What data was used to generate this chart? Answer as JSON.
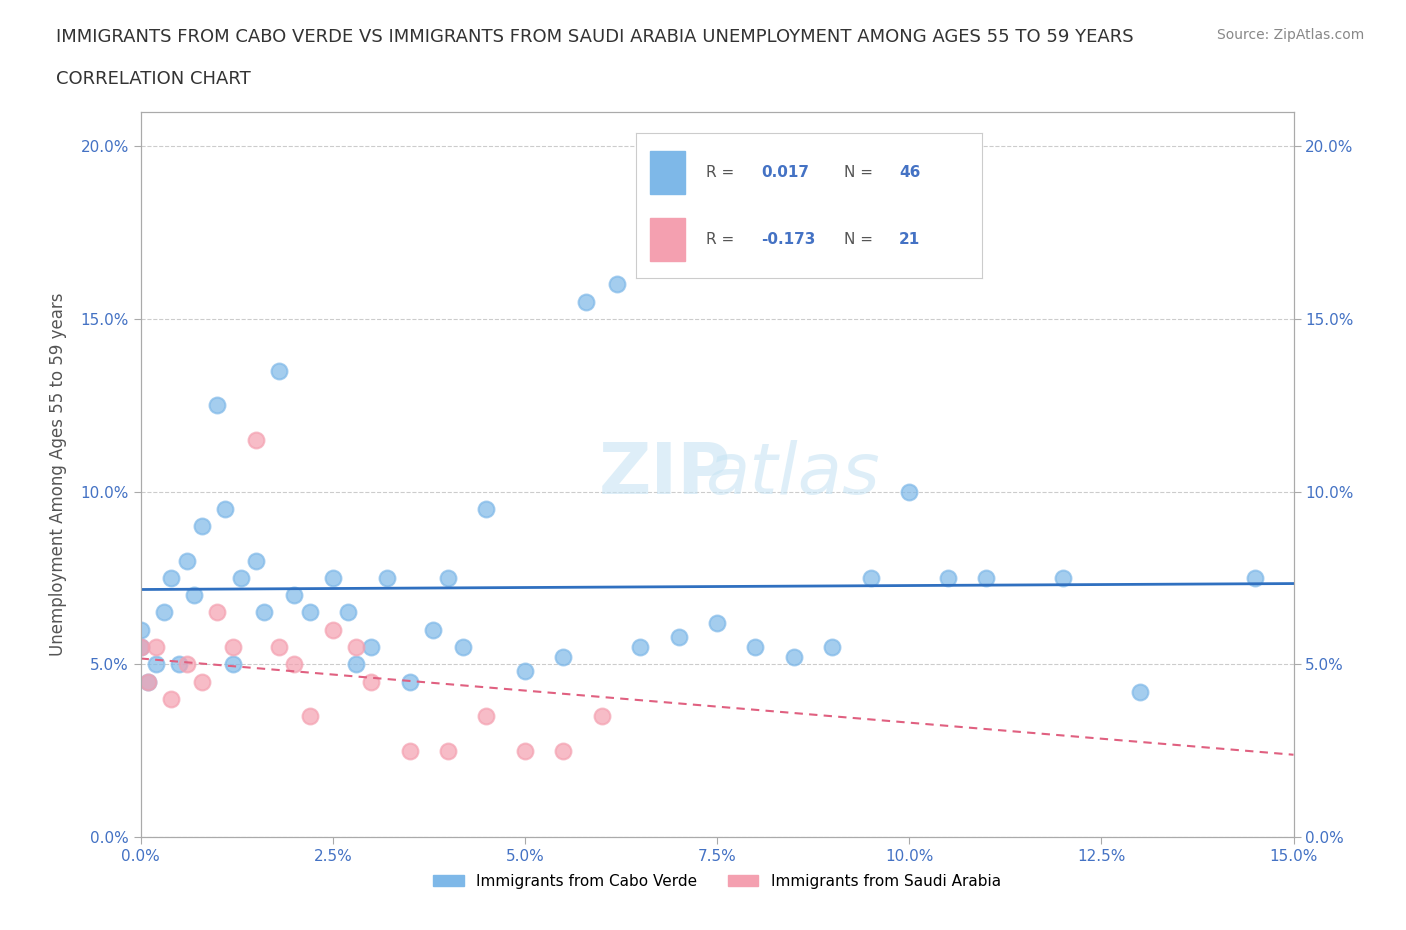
{
  "title_line1": "IMMIGRANTS FROM CABO VERDE VS IMMIGRANTS FROM SAUDI ARABIA UNEMPLOYMENT AMONG AGES 55 TO 59 YEARS",
  "title_line2": "CORRELATION CHART",
  "source": "Source: ZipAtlas.com",
  "xlabel_vals": [
    0.0,
    2.5,
    5.0,
    7.5,
    10.0,
    12.5,
    15.0
  ],
  "ylabel_vals": [
    0.0,
    5.0,
    10.0,
    15.0,
    20.0
  ],
  "xlim": [
    0.0,
    15.0
  ],
  "ylim": [
    0.0,
    21.0
  ],
  "watermark_zip": "ZIP",
  "watermark_atlas": "atlas",
  "cabo_verde_R": 0.017,
  "cabo_verde_N": 46,
  "saudi_arabia_R": -0.173,
  "saudi_arabia_N": 21,
  "cabo_verde_color": "#7EB8E8",
  "saudi_arabia_color": "#F4A0B0",
  "cabo_verde_line_color": "#3070C0",
  "saudi_arabia_line_color": "#E06080",
  "cabo_verde_x": [
    0.0,
    0.0,
    0.1,
    0.2,
    0.3,
    0.4,
    0.5,
    0.6,
    0.7,
    0.8,
    1.0,
    1.1,
    1.2,
    1.3,
    1.5,
    1.6,
    1.8,
    2.0,
    2.2,
    2.5,
    2.7,
    2.8,
    3.0,
    3.2,
    3.5,
    3.8,
    4.0,
    4.2,
    4.5,
    5.0,
    5.5,
    5.8,
    6.2,
    6.5,
    7.0,
    7.5,
    8.0,
    8.5,
    9.0,
    9.5,
    10.0,
    10.5,
    11.0,
    12.0,
    13.0,
    14.5
  ],
  "cabo_verde_y": [
    5.5,
    6.0,
    4.5,
    5.0,
    6.5,
    7.5,
    5.0,
    8.0,
    7.0,
    9.0,
    12.5,
    9.5,
    5.0,
    7.5,
    8.0,
    6.5,
    13.5,
    7.0,
    6.5,
    7.5,
    6.5,
    5.0,
    5.5,
    7.5,
    4.5,
    6.0,
    7.5,
    5.5,
    9.5,
    4.8,
    5.2,
    15.5,
    16.0,
    5.5,
    5.8,
    6.2,
    5.5,
    5.2,
    5.5,
    7.5,
    10.0,
    7.5,
    7.5,
    7.5,
    4.2,
    7.5
  ],
  "saudi_arabia_x": [
    0.0,
    0.1,
    0.2,
    0.4,
    0.6,
    0.8,
    1.0,
    1.2,
    1.5,
    1.8,
    2.0,
    2.2,
    2.5,
    2.8,
    3.0,
    3.5,
    4.0,
    4.5,
    5.0,
    5.5,
    6.0
  ],
  "saudi_arabia_y": [
    5.5,
    4.5,
    5.5,
    4.0,
    5.0,
    4.5,
    6.5,
    5.5,
    11.5,
    5.5,
    5.0,
    3.5,
    6.0,
    5.5,
    4.5,
    2.5,
    2.5,
    3.5,
    2.5,
    2.5,
    3.5
  ],
  "grid_color": "#CCCCCC",
  "background_color": "#FFFFFF"
}
